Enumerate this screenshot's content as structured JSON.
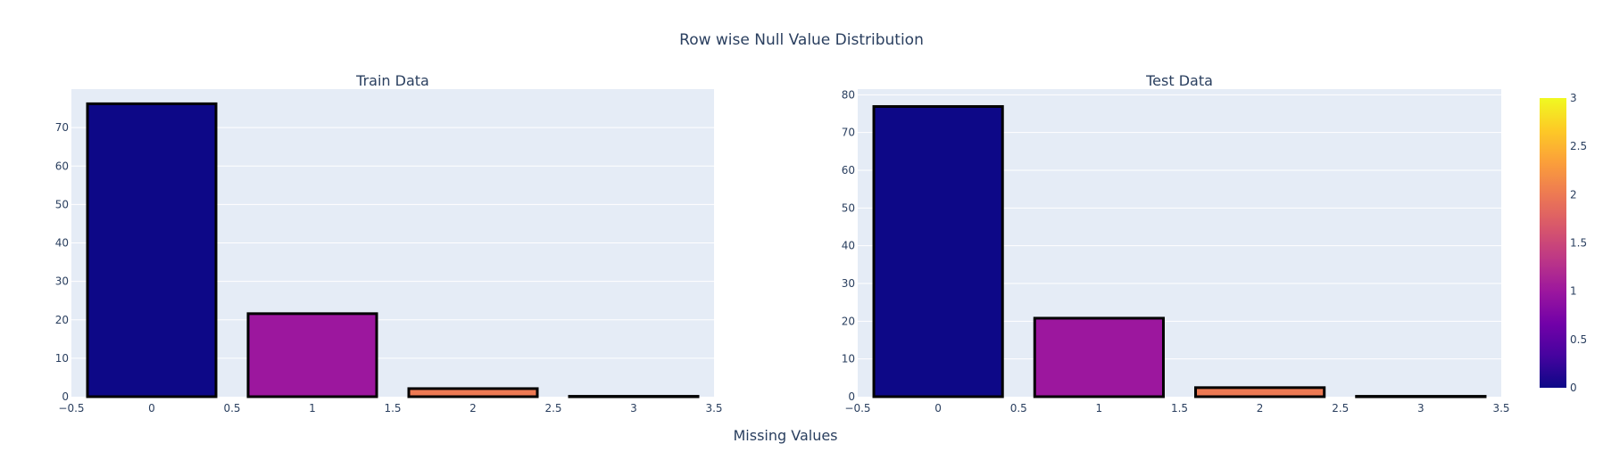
{
  "title": "Row wise Null Value Distribution",
  "xlabel": "Missing Values",
  "chart_data": [
    {
      "type": "bar",
      "title": "Train Data",
      "x": [
        0,
        1,
        2,
        3
      ],
      "values": [
        76.2,
        21.6,
        2.1,
        0.1
      ],
      "xlim": [
        -0.5,
        3.5
      ],
      "ylim": [
        0,
        80
      ],
      "xticks": [
        "−0.5",
        "0",
        "0.5",
        "1",
        "1.5",
        "2",
        "2.5",
        "3",
        "3.5"
      ],
      "yticks": [
        "0",
        "10",
        "20",
        "30",
        "40",
        "50",
        "60",
        "70"
      ],
      "grid": true
    },
    {
      "type": "bar",
      "title": "Test Data",
      "x": [
        0,
        1,
        2,
        3
      ],
      "values": [
        76.9,
        20.8,
        2.4,
        0.1
      ],
      "xlim": [
        -0.5,
        3.5
      ],
      "ylim": [
        0,
        81.5
      ],
      "xticks": [
        "−0.5",
        "0",
        "0.5",
        "1",
        "1.5",
        "2",
        "2.5",
        "3",
        "3.5"
      ],
      "yticks": [
        "0",
        "10",
        "20",
        "30",
        "40",
        "50",
        "60",
        "70",
        "80"
      ],
      "grid": true
    }
  ],
  "colorbar": {
    "range": [
      0,
      3
    ],
    "ticks": [
      "0",
      "0.5",
      "1",
      "1.5",
      "2",
      "2.5",
      "3"
    ],
    "colorscale": "plasma",
    "stops": [
      "#0d0887",
      "#46039f",
      "#7201a8",
      "#9c179e",
      "#bd3786",
      "#d8576b",
      "#ed7953",
      "#fb9f3a",
      "#fdca26",
      "#f0f921"
    ]
  },
  "colors": {
    "plot_bg": "#e5ecf6",
    "grid": "#ffffff",
    "bar_outline": "#000000",
    "text": "#2a3f5f"
  }
}
